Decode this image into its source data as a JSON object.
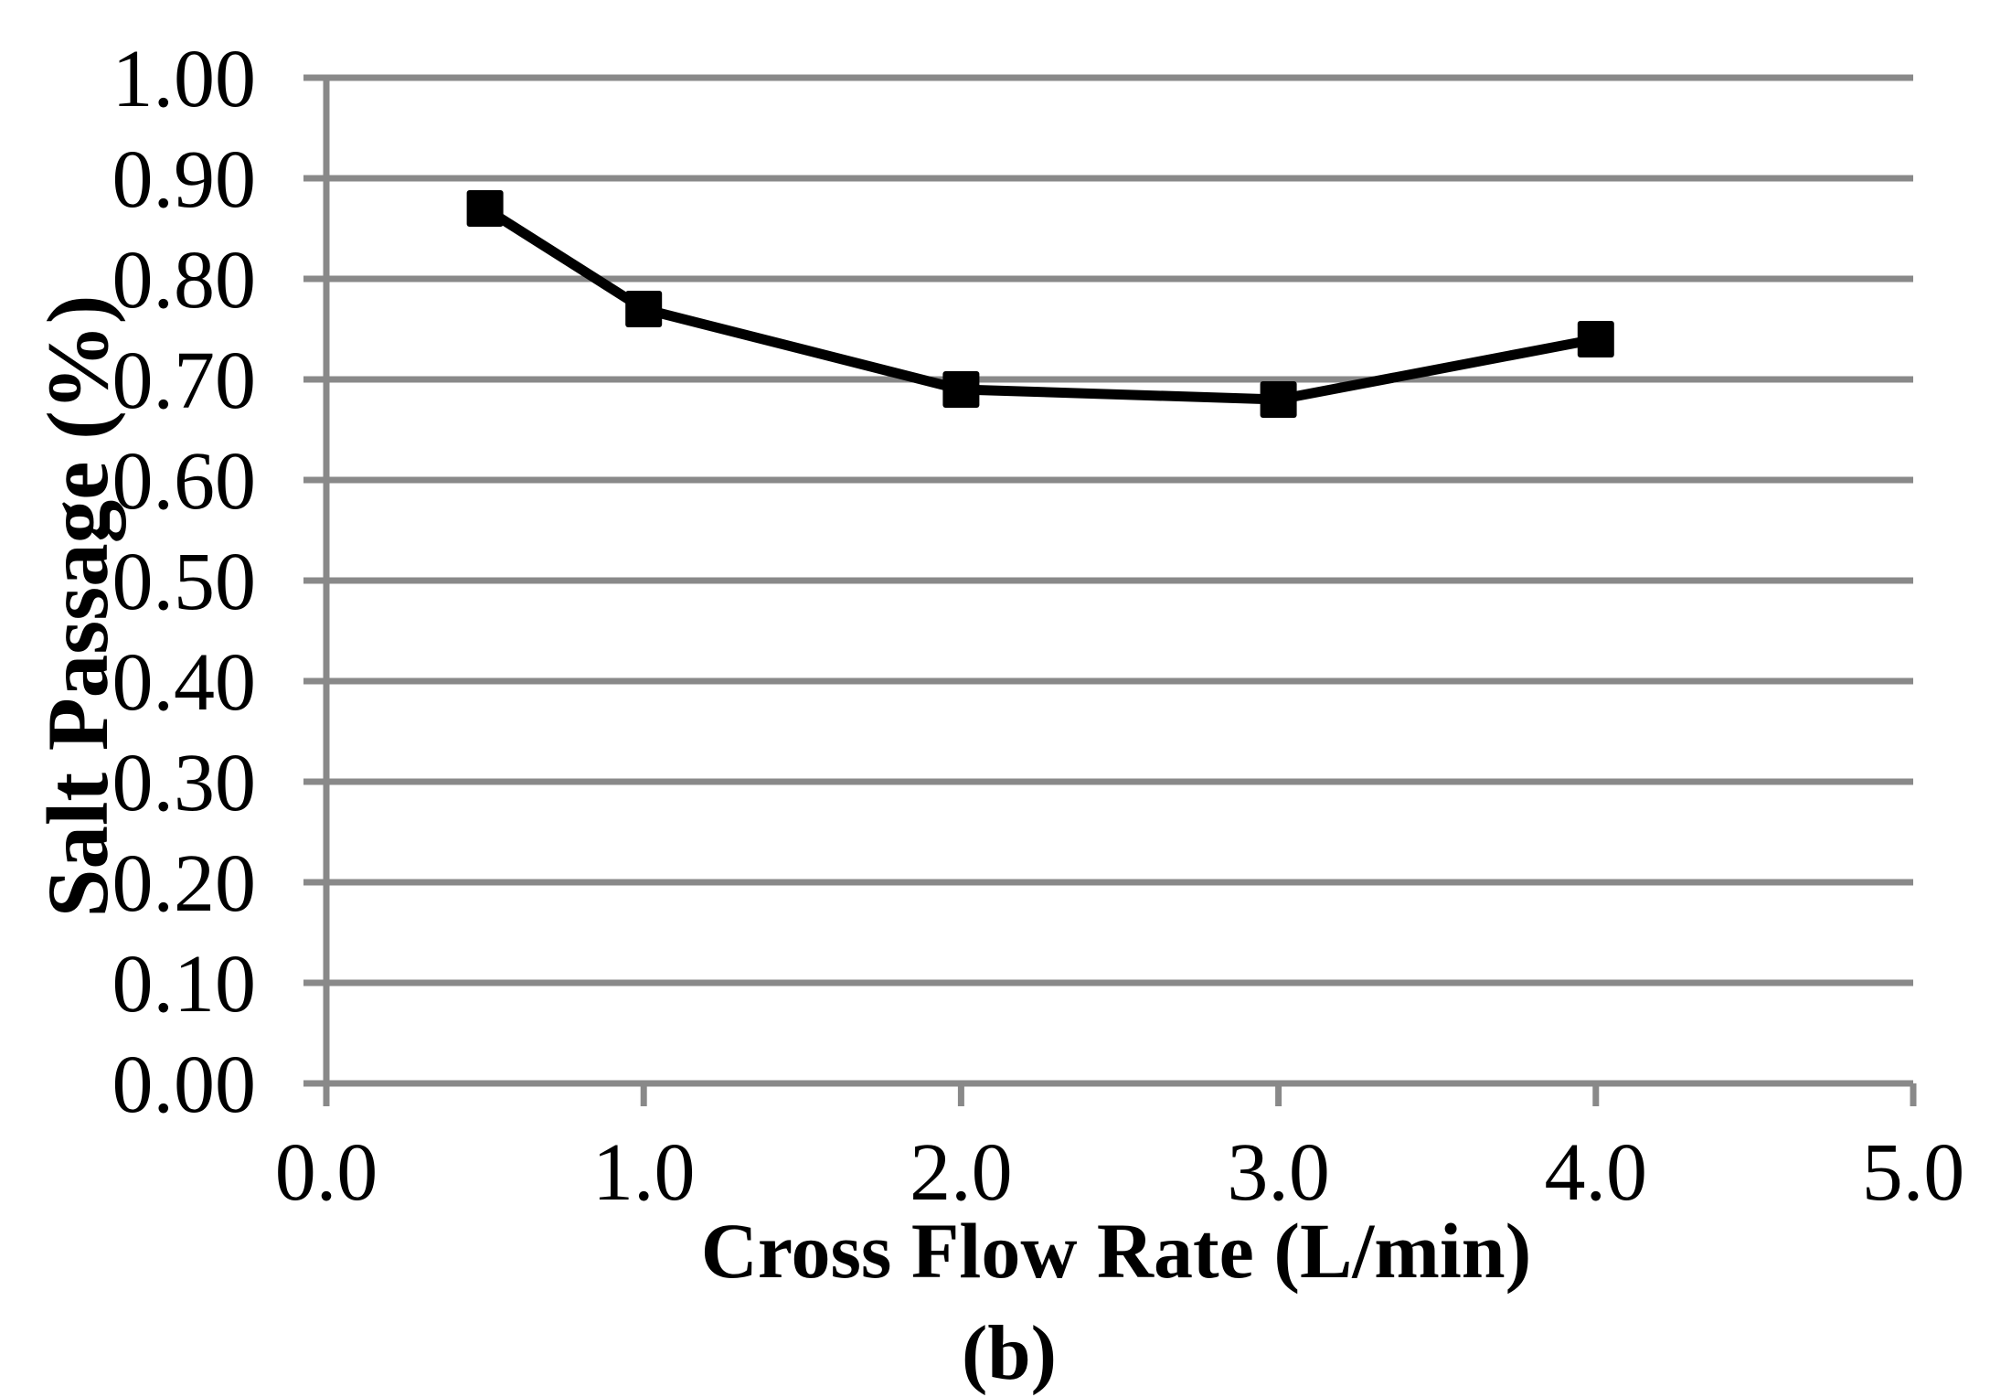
{
  "chart_data": {
    "type": "line",
    "title": "",
    "xlabel": "Cross Flow Rate (L/min)",
    "ylabel": "Salt Passage (%)",
    "caption": "(b)",
    "x": [
      0.5,
      1.0,
      2.0,
      3.0,
      4.0
    ],
    "series": [
      {
        "name": "Salt Passage",
        "values": [
          0.87,
          0.77,
          0.69,
          0.68,
          0.74
        ]
      }
    ],
    "xlim": [
      0.0,
      5.0
    ],
    "ylim": [
      0.0,
      1.0
    ],
    "x_ticks": [
      "0.0",
      "1.0",
      "2.0",
      "3.0",
      "4.0",
      "5.0"
    ],
    "y_ticks": [
      "0.00",
      "0.10",
      "0.20",
      "0.30",
      "0.40",
      "0.50",
      "0.60",
      "0.70",
      "0.80",
      "0.90",
      "1.00"
    ],
    "grid": true,
    "legend": false,
    "marker": "square",
    "line_color": "#000000",
    "grid_color": "#898989"
  }
}
